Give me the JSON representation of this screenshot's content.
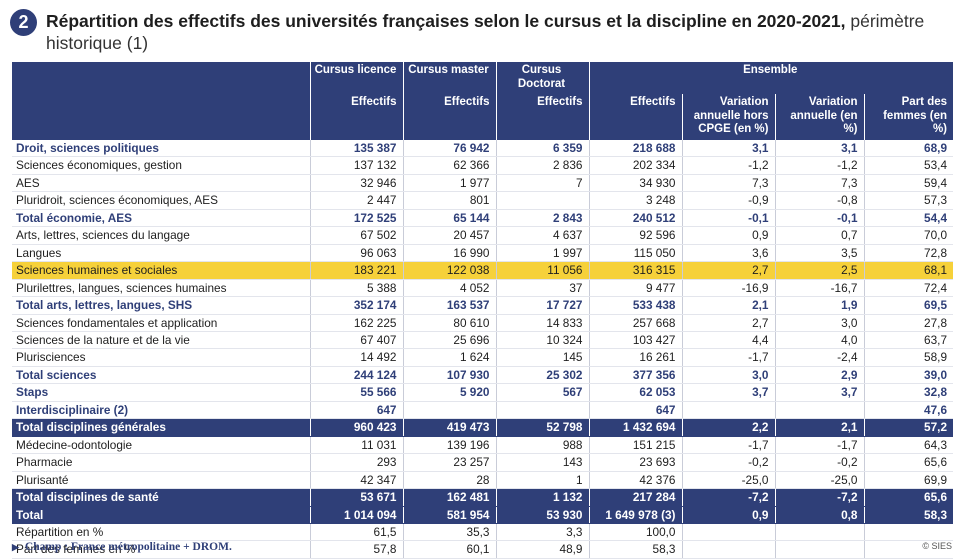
{
  "header": {
    "badge": "2",
    "title_bold": "Répartition des effectifs des universités françaises selon le cursus et la discipline en 2020-2021,",
    "title_normal": " périmètre historique (1)"
  },
  "columns": {
    "group_licence": "Cursus licence",
    "group_master": "Cursus master",
    "group_doctorat": "Cursus Doctorat",
    "group_ensemble": "Ensemble",
    "effectifs": "Effectifs",
    "var_hors": "Variation annuelle hors CPGE (en %)",
    "var": "Variation annuelle (en %)",
    "femmes": "Part des femmes (en %)"
  },
  "rows": [
    {
      "style": "total",
      "label": "Droit, sciences politiques",
      "c1": "135 387",
      "c2": "76 942",
      "c3": "6 359",
      "c4": "218 688",
      "c5": "3,1",
      "c6": "3,1",
      "c7": "68,9"
    },
    {
      "style": "",
      "label": "Sciences économiques, gestion",
      "c1": "137 132",
      "c2": "62 366",
      "c3": "2 836",
      "c4": "202 334",
      "c5": "-1,2",
      "c6": "-1,2",
      "c7": "53,4"
    },
    {
      "style": "",
      "label": "AES",
      "c1": "32 946",
      "c2": "1 977",
      "c3": "7",
      "c4": "34 930",
      "c5": "7,3",
      "c6": "7,3",
      "c7": "59,4"
    },
    {
      "style": "",
      "label": "Pluridroit, sciences économiques, AES",
      "c1": "2 447",
      "c2": "801",
      "c3": "",
      "c4": "3 248",
      "c5": "-0,9",
      "c6": "-0,8",
      "c7": "57,3"
    },
    {
      "style": "total",
      "label": "Total économie, AES",
      "c1": "172 525",
      "c2": "65 144",
      "c3": "2 843",
      "c4": "240 512",
      "c5": "-0,1",
      "c6": "-0,1",
      "c7": "54,4"
    },
    {
      "style": "",
      "label": "Arts, lettres, sciences du langage",
      "c1": "67 502",
      "c2": "20 457",
      "c3": "4 637",
      "c4": "92 596",
      "c5": "0,9",
      "c6": "0,7",
      "c7": "70,0"
    },
    {
      "style": "",
      "label": "Langues",
      "c1": "96 063",
      "c2": "16 990",
      "c3": "1 997",
      "c4": "115 050",
      "c5": "3,6",
      "c6": "3,5",
      "c7": "72,8"
    },
    {
      "style": "highlight",
      "label": "Sciences humaines et sociales",
      "c1": "183 221",
      "c2": "122 038",
      "c3": "11 056",
      "c4": "316 315",
      "c5": "2,7",
      "c6": "2,5",
      "c7": "68,1"
    },
    {
      "style": "",
      "label": "Plurilettres, langues, sciences humaines",
      "c1": "5 388",
      "c2": "4 052",
      "c3": "37",
      "c4": "9 477",
      "c5": "-16,9",
      "c6": "-16,7",
      "c7": "72,4"
    },
    {
      "style": "total",
      "label": "Total arts, lettres, langues, SHS",
      "c1": "352 174",
      "c2": "163 537",
      "c3": "17 727",
      "c4": "533 438",
      "c5": "2,1",
      "c6": "1,9",
      "c7": "69,5"
    },
    {
      "style": "",
      "label": "Sciences fondamentales et application",
      "c1": "162 225",
      "c2": "80 610",
      "c3": "14 833",
      "c4": "257 668",
      "c5": "2,7",
      "c6": "3,0",
      "c7": "27,8"
    },
    {
      "style": "",
      "label": "Sciences de la nature et de la vie",
      "c1": "67 407",
      "c2": "25 696",
      "c3": "10 324",
      "c4": "103 427",
      "c5": "4,4",
      "c6": "4,0",
      "c7": "63,7"
    },
    {
      "style": "",
      "label": "Plurisciences",
      "c1": "14 492",
      "c2": "1 624",
      "c3": "145",
      "c4": "16 261",
      "c5": "-1,7",
      "c6": "-2,4",
      "c7": "58,9"
    },
    {
      "style": "total",
      "label": "Total sciences",
      "c1": "244 124",
      "c2": "107 930",
      "c3": "25 302",
      "c4": "377 356",
      "c5": "3,0",
      "c6": "2,9",
      "c7": "39,0"
    },
    {
      "style": "total",
      "label": "Staps",
      "c1": "55 566",
      "c2": "5 920",
      "c3": "567",
      "c4": "62 053",
      "c5": "3,7",
      "c6": "3,7",
      "c7": "32,8"
    },
    {
      "style": "total",
      "label": "Interdisciplinaire (2)",
      "c1": "647",
      "c2": "",
      "c3": "",
      "c4": "647",
      "c5": "",
      "c6": "",
      "c7": "47,6"
    },
    {
      "style": "dark",
      "label": "Total disciplines générales",
      "c1": "960 423",
      "c2": "419 473",
      "c3": "52 798",
      "c4": "1 432 694",
      "c5": "2,2",
      "c6": "2,1",
      "c7": "57,2"
    },
    {
      "style": "",
      "label": "Médecine-odontologie",
      "c1": "11 031",
      "c2": "139 196",
      "c3": "988",
      "c4": "151 215",
      "c5": "-1,7",
      "c6": "-1,7",
      "c7": "64,3"
    },
    {
      "style": "",
      "label": "Pharmacie",
      "c1": "293",
      "c2": "23 257",
      "c3": "143",
      "c4": "23 693",
      "c5": "-0,2",
      "c6": "-0,2",
      "c7": "65,6"
    },
    {
      "style": "",
      "label": "Plurisanté",
      "c1": "42 347",
      "c2": "28",
      "c3": "1",
      "c4": "42 376",
      "c5": "-25,0",
      "c6": "-25,0",
      "c7": "69,9"
    },
    {
      "style": "dark",
      "label": "Total disciplines de santé",
      "c1": "53 671",
      "c2": "162 481",
      "c3": "1 132",
      "c4": "217 284",
      "c5": "-7,2",
      "c6": "-7,2",
      "c7": "65,6"
    },
    {
      "style": "dark",
      "label": "Total",
      "c1": "1 014 094",
      "c2": "581 954",
      "c3": "53 930",
      "c4": "1 649 978 (3)",
      "c5": "0,9",
      "c6": "0,8",
      "c7": "58,3"
    },
    {
      "style": "foot",
      "label": "Répartition en %",
      "c1": "61,5",
      "c2": "35,3",
      "c3": "3,3",
      "c4": "100,0",
      "c5": "",
      "c6": "",
      "c7": ""
    },
    {
      "style": "foot",
      "label": "Part des femmes en %",
      "c1": "57,8",
      "c2": "60,1",
      "c3": "48,9",
      "c4": "58,3",
      "c5": "",
      "c6": "",
      "c7": ""
    }
  ],
  "footnote": "Champ : France métropolitaine + DROM.",
  "source": "© SIES"
}
